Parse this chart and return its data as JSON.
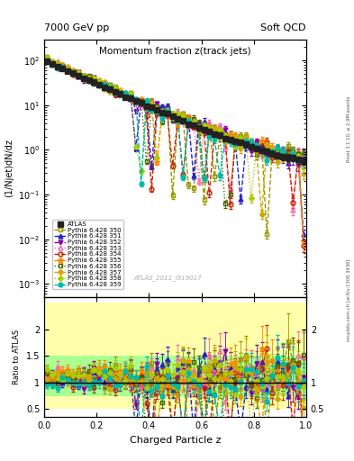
{
  "title_main": "Momentum fraction z(track jets)",
  "header_left": "7000 GeV pp",
  "header_right": "Soft QCD",
  "ylabel_main": "(1/Njet)dN/dz",
  "ylabel_ratio": "Ratio to ATLAS",
  "xlabel": "Charged Particle z",
  "right_label_top": "Rivet 3.1.10, ≥ 2.9M events",
  "right_label_bot": "mcplots.cern.ch [arXiv:1306.3436]",
  "watermark": "ATLAS_2011_I919017",
  "ylim_main": [
    0.0005,
    300.0
  ],
  "ylim_ratio": [
    0.35,
    2.6
  ],
  "xmin": 0.0,
  "xmax": 1.0,
  "series": [
    {
      "label": "ATLAS",
      "color": "#222222",
      "marker": "s",
      "ls": "none",
      "lw": 1.0,
      "filled": true,
      "ms": 4
    },
    {
      "label": "Pythia 6.428 350",
      "color": "#999900",
      "marker": "s",
      "ls": "--",
      "lw": 1.0,
      "filled": false,
      "ms": 3.5
    },
    {
      "label": "Pythia 6.428 351",
      "color": "#2222cc",
      "marker": "^",
      "ls": "--",
      "lw": 1.0,
      "filled": true,
      "ms": 3.5
    },
    {
      "label": "Pythia 6.428 352",
      "color": "#8800aa",
      "marker": "v",
      "ls": "-.",
      "lw": 1.0,
      "filled": true,
      "ms": 3.5
    },
    {
      "label": "Pythia 6.428 353",
      "color": "#ff66aa",
      "marker": "^",
      "ls": ":",
      "lw": 1.0,
      "filled": false,
      "ms": 3.5
    },
    {
      "label": "Pythia 6.428 354",
      "color": "#cc2200",
      "marker": "o",
      "ls": "--",
      "lw": 1.0,
      "filled": false,
      "ms": 3.5
    },
    {
      "label": "Pythia 6.428 355",
      "color": "#ff8800",
      "marker": "*",
      "ls": "--",
      "lw": 1.0,
      "filled": true,
      "ms": 5
    },
    {
      "label": "Pythia 6.428 356",
      "color": "#446600",
      "marker": "s",
      "ls": ":",
      "lw": 1.0,
      "filled": false,
      "ms": 3.5
    },
    {
      "label": "Pythia 6.428 357",
      "color": "#ccaa00",
      "marker": "D",
      "ls": "--",
      "lw": 1.0,
      "filled": true,
      "ms": 3
    },
    {
      "label": "Pythia 6.428 358",
      "color": "#aacc00",
      "marker": "D",
      "ls": ":",
      "lw": 1.0,
      "filled": true,
      "ms": 3
    },
    {
      "label": "Pythia 6.428 359",
      "color": "#00bbaa",
      "marker": "o",
      "ls": "--",
      "lw": 1.0,
      "filled": true,
      "ms": 3.5
    }
  ],
  "band_yellow": {
    "facecolor": "#ffff88",
    "alpha": 0.7
  },
  "band_green": {
    "facecolor": "#88ff88",
    "alpha": 0.7
  }
}
